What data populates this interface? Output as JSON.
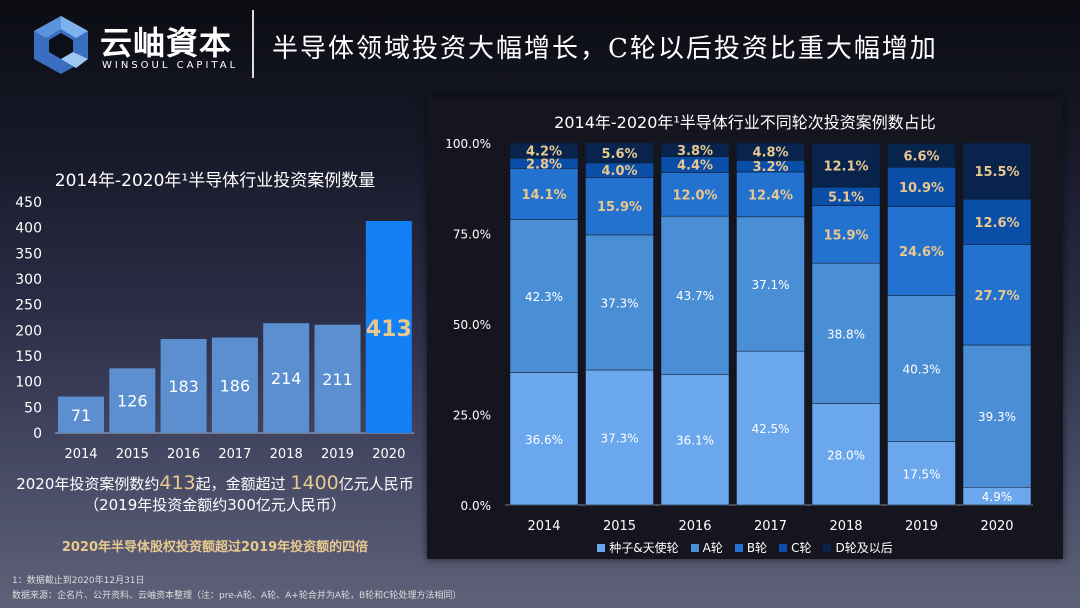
{
  "brand": {
    "name_cn": "云岫資本",
    "name_en": "WINSOUL CAPITAL"
  },
  "headline": "半导体领域投资大幅增长，C轮以后投资比重大幅增加",
  "notes": {
    "line1_a": "2020年投资案例数约",
    "line1_b": "413",
    "line1_c": "起，金额超过 ",
    "line1_d": "1400",
    "line1_e": "亿元人民币",
    "line2": "（2019年投资金额约300亿元人民币）",
    "highlight": "2020年半导体股权投资额超过2019年投资额的四倍",
    "footnote1": "1：数据截止到2020年12月31日",
    "footnote2": "数据来源：企名片、公开资料、云岫资本整理（注：pre-A轮、A轮、A+轮合并为A轮，B轮和C轮处理方法相同）"
  },
  "chart_data": [
    {
      "type": "bar",
      "title": "2014年-2020年¹半导体行业投资案例数量",
      "categories": [
        "2014",
        "2015",
        "2016",
        "2017",
        "2018",
        "2019",
        "2020"
      ],
      "values": [
        71,
        126,
        183,
        186,
        214,
        211,
        413
      ],
      "ylim": [
        0,
        450
      ],
      "yticks": [
        0,
        50,
        100,
        150,
        200,
        250,
        300,
        350,
        400,
        450
      ],
      "colors": {
        "bar": "#5b8fd0",
        "highlight": "#1480f5",
        "highlight_label": "#e8c88f"
      },
      "grid": false
    },
    {
      "type": "bar",
      "stacked": true,
      "title": "2014年-2020年¹半导体行业不同轮次投资案例数占比",
      "categories": [
        "2014",
        "2015",
        "2016",
        "2017",
        "2018",
        "2019",
        "2020"
      ],
      "yticks": [
        "0.0%",
        "25.0%",
        "50.0%",
        "75.0%",
        "100.0%"
      ],
      "ylim": [
        0,
        100
      ],
      "legend": "bottom",
      "grid": false,
      "series": [
        {
          "name": "种子&天使轮",
          "color": "#6aa7ec",
          "label_color": "#ffffff",
          "values": [
            36.6,
            37.3,
            36.1,
            42.5,
            28.0,
            17.5,
            4.9
          ]
        },
        {
          "name": "A轮",
          "color": "#4a8fd6",
          "label_color": "#ffffff",
          "values": [
            42.3,
            37.3,
            43.7,
            37.1,
            38.8,
            40.3,
            39.3
          ]
        },
        {
          "name": "B轮",
          "color": "#2472d0",
          "label_color": "#e8c88f",
          "values": [
            14.1,
            15.9,
            12.0,
            12.4,
            15.9,
            24.6,
            27.7
          ]
        },
        {
          "name": "C轮",
          "color": "#0a4ea8",
          "label_color": "#e8c88f",
          "values": [
            2.8,
            4.0,
            4.4,
            3.2,
            5.1,
            10.9,
            12.6
          ]
        },
        {
          "name": "D轮及以后",
          "color": "#08244d",
          "label_color": "#e8c88f",
          "values": [
            4.2,
            5.6,
            3.8,
            4.8,
            12.1,
            6.6,
            15.5
          ]
        }
      ]
    }
  ]
}
